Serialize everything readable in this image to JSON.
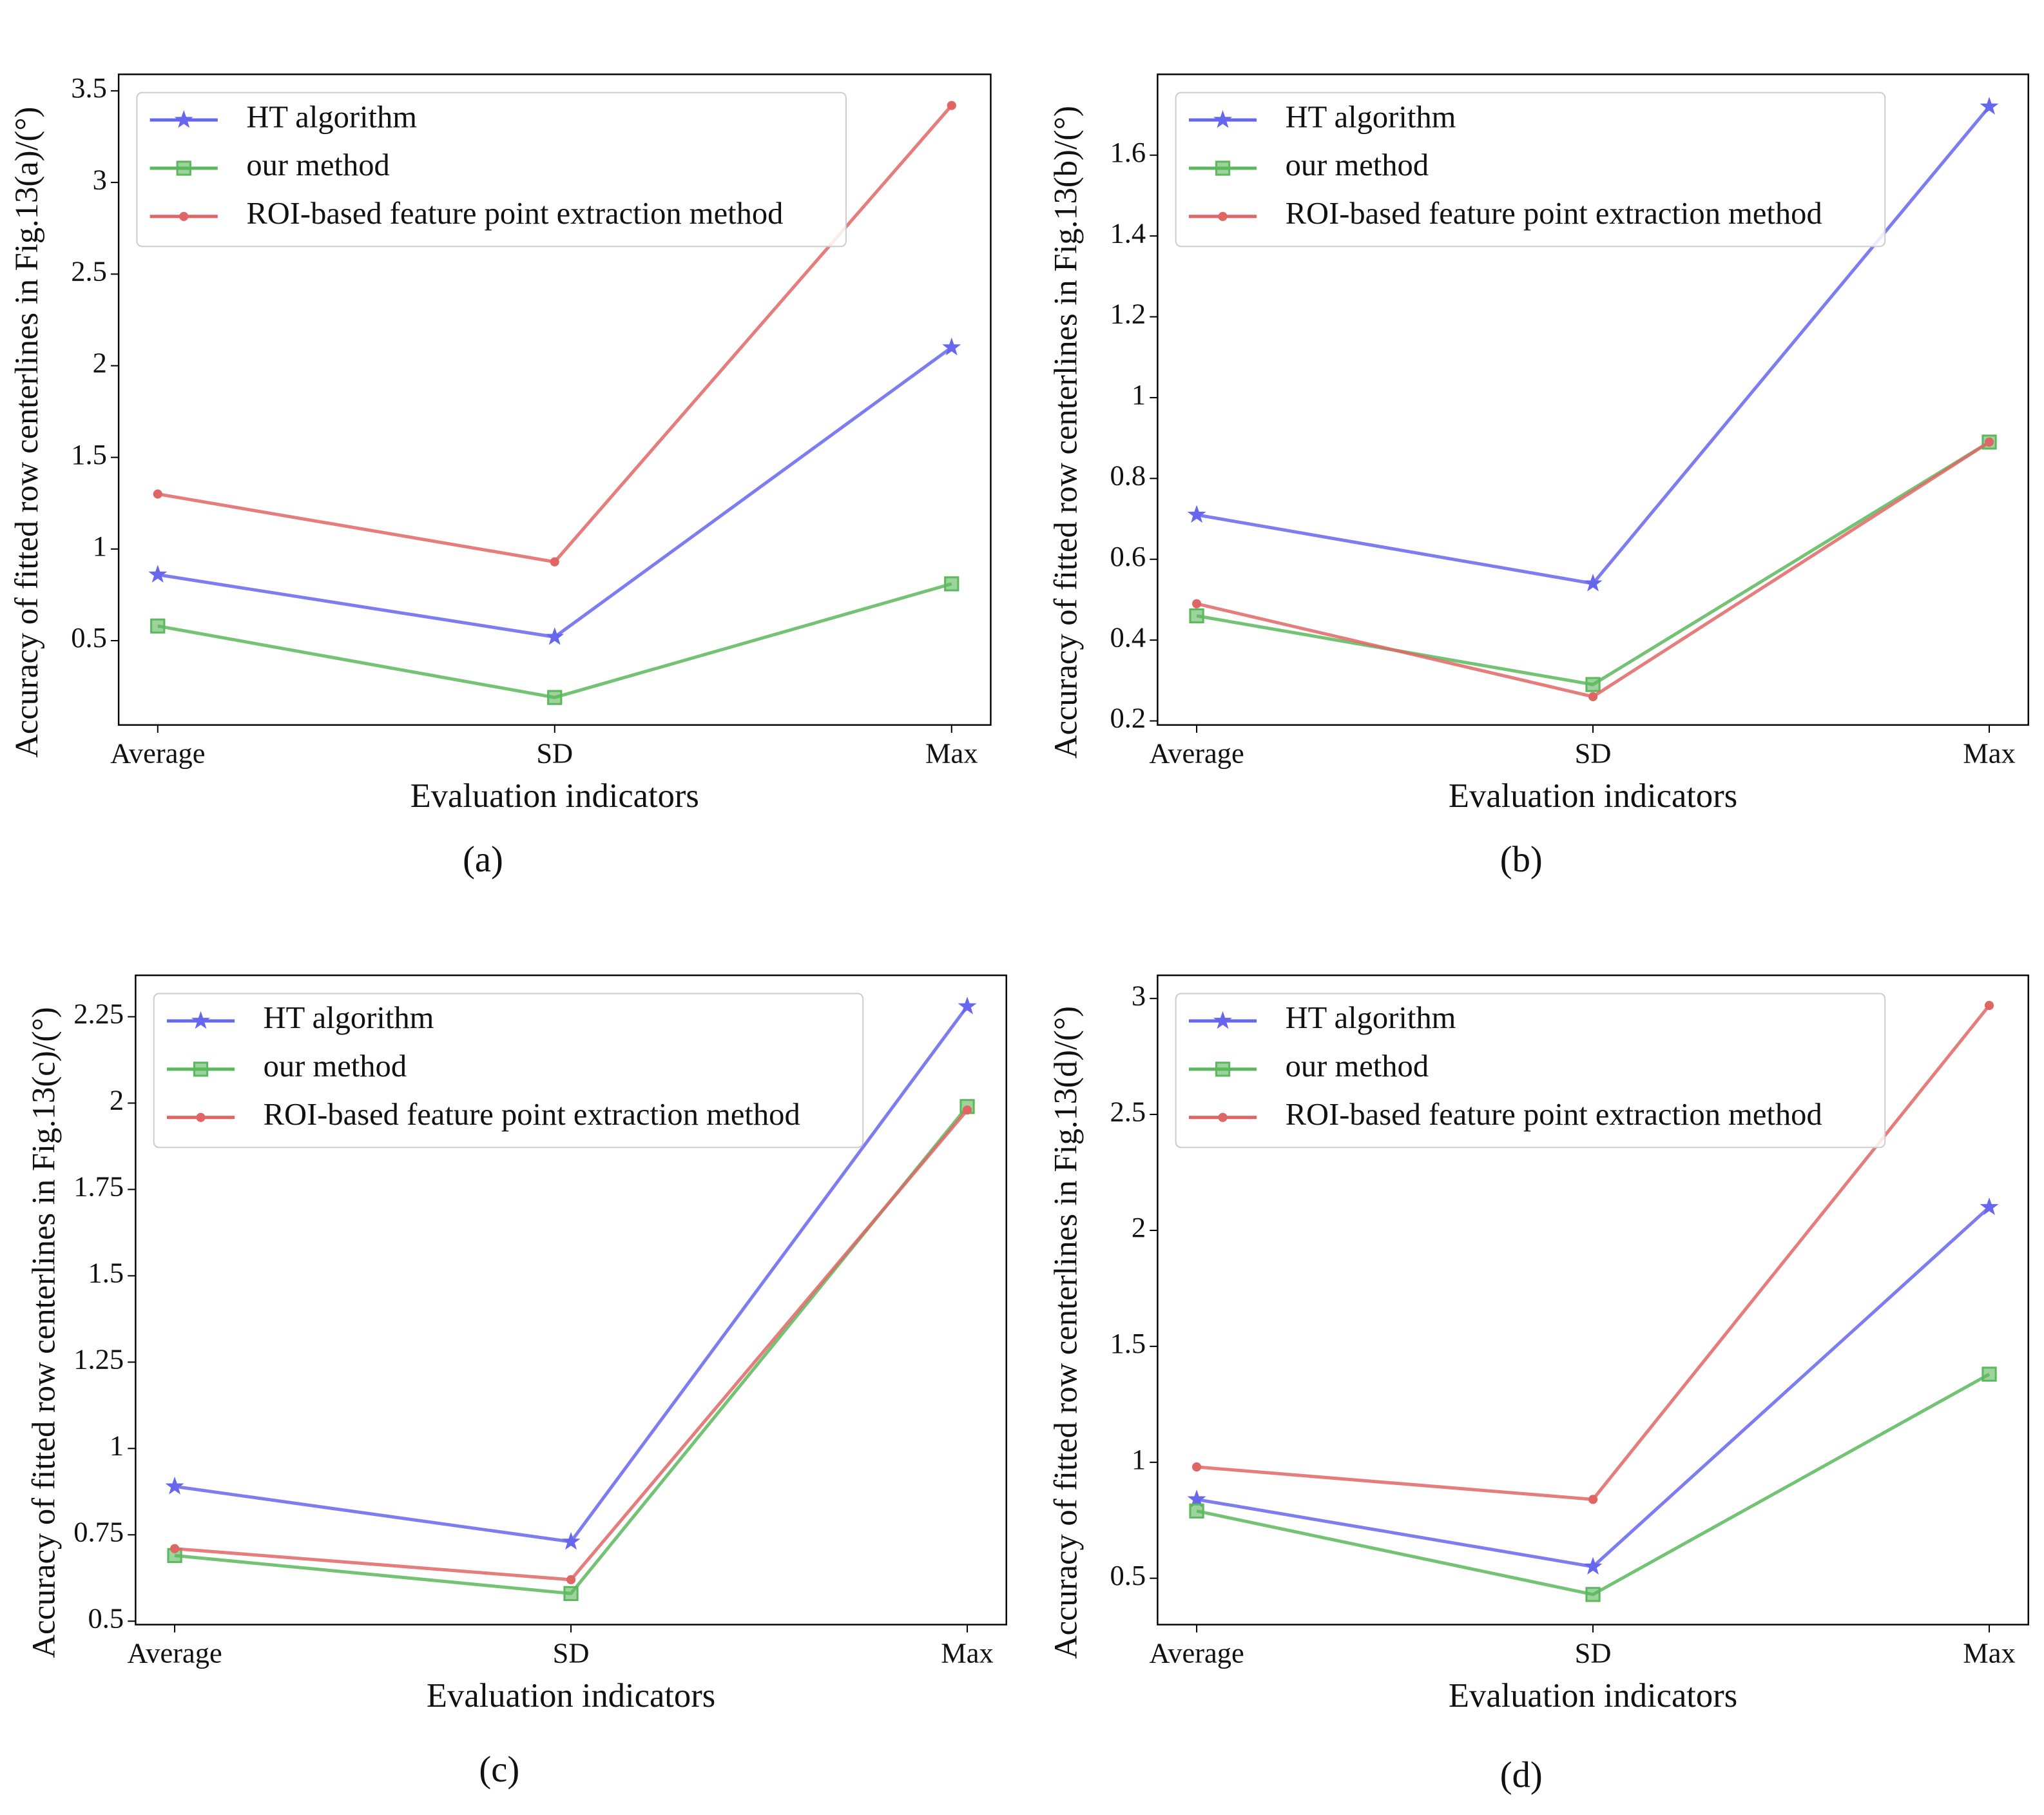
{
  "chart_data": [
    {
      "type": "line",
      "caption": "(a)",
      "ylabel": "Accuracy of fitted row centerlines in Fig.13(a)/(°)",
      "xlabel": "Evaluation indicators",
      "categories": [
        "Average",
        "SD",
        "Max"
      ],
      "ylim": [
        0.04,
        3.59
      ],
      "yticks": [
        0.5,
        1.0,
        1.5,
        2.0,
        2.5,
        3.0,
        3.5
      ],
      "legend": "upper left",
      "series": [
        {
          "name": "HT algorithm",
          "color": "#6666ee",
          "marker": "star",
          "values": [
            0.86,
            0.52,
            2.1
          ]
        },
        {
          "name": "our method",
          "color": "#5cb85c",
          "marker": "square",
          "values": [
            0.58,
            0.19,
            0.81
          ]
        },
        {
          "name": "ROI-based feature point extraction method",
          "color": "#e06666",
          "marker": "dot",
          "values": [
            1.3,
            0.93,
            3.42
          ]
        }
      ]
    },
    {
      "type": "line",
      "caption": "(b)",
      "ylabel": "Accuracy of fitted row centerlines in Fig.13(b)/(°)",
      "xlabel": "Evaluation indicators",
      "categories": [
        "Average",
        "SD",
        "Max"
      ],
      "ylim": [
        0.19,
        1.8
      ],
      "yticks": [
        0.2,
        0.4,
        0.6,
        0.8,
        1.0,
        1.2,
        1.4,
        1.6
      ],
      "legend": "upper left",
      "series": [
        {
          "name": "HT algorithm",
          "color": "#6666ee",
          "marker": "star",
          "values": [
            0.71,
            0.54,
            1.72
          ]
        },
        {
          "name": "our method",
          "color": "#5cb85c",
          "marker": "square",
          "values": [
            0.46,
            0.29,
            0.89
          ]
        },
        {
          "name": "ROI-based feature point extraction method",
          "color": "#e06666",
          "marker": "dot",
          "values": [
            0.49,
            0.26,
            0.89
          ]
        }
      ]
    },
    {
      "type": "line",
      "caption": "(c)",
      "ylabel": "Accuracy of fitted row centerlines in Fig.13(c)/(°)",
      "xlabel": "Evaluation indicators",
      "categories": [
        "Average",
        "SD",
        "Max"
      ],
      "ylim": [
        0.49,
        2.37
      ],
      "yticks": [
        0.5,
        0.75,
        1.0,
        1.25,
        1.5,
        1.75,
        2.0,
        2.25
      ],
      "legend": "upper left",
      "series": [
        {
          "name": "HT algorithm",
          "color": "#6666ee",
          "marker": "star",
          "values": [
            0.89,
            0.73,
            2.28
          ]
        },
        {
          "name": "our method",
          "color": "#5cb85c",
          "marker": "square",
          "values": [
            0.69,
            0.58,
            1.99
          ]
        },
        {
          "name": "ROI-based feature point extraction method",
          "color": "#e06666",
          "marker": "dot",
          "values": [
            0.71,
            0.62,
            1.98
          ]
        }
      ]
    },
    {
      "type": "line",
      "caption": "(d)",
      "ylabel": "Accuracy of fitted row centerlines in Fig.13(d)/(°)",
      "xlabel": "Evaluation indicators",
      "categories": [
        "Average",
        "SD",
        "Max"
      ],
      "ylim": [
        0.3,
        3.1
      ],
      "yticks": [
        0.5,
        1.0,
        1.5,
        2.0,
        2.5,
        3.0
      ],
      "legend": "upper left",
      "series": [
        {
          "name": "HT algorithm",
          "color": "#6666ee",
          "marker": "star",
          "values": [
            0.84,
            0.55,
            2.1
          ]
        },
        {
          "name": "our method",
          "color": "#5cb85c",
          "marker": "square",
          "values": [
            0.79,
            0.43,
            1.38
          ]
        },
        {
          "name": "ROI-based feature point extraction method",
          "color": "#e06666",
          "marker": "dot",
          "values": [
            0.98,
            0.84,
            2.97
          ]
        }
      ]
    }
  ]
}
